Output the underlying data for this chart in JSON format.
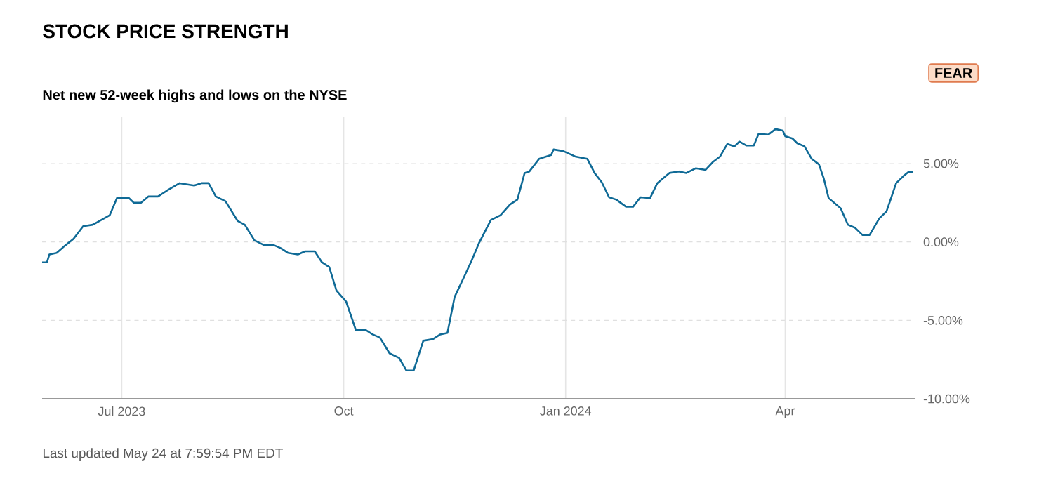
{
  "chart_data": {
    "type": "line",
    "title": "STOCK PRICE STRENGTH",
    "subtitle": "Net new 52-week highs and lows on the NYSE",
    "annotations": [
      "FEAR",
      "Last updated May 24 at 7:59:54 PM EDT"
    ],
    "x": [
      "2023-05-29",
      "2023-05-31",
      "2023-06-01",
      "2023-06-04",
      "2023-06-07",
      "2023-06-11",
      "2023-06-15",
      "2023-06-19",
      "2023-06-26",
      "2023-06-29",
      "2023-07-04",
      "2023-07-06",
      "2023-07-09",
      "2023-07-12",
      "2023-07-16",
      "2023-07-20",
      "2023-07-25",
      "2023-07-31",
      "2023-08-03",
      "2023-08-06",
      "2023-08-09",
      "2023-08-13",
      "2023-08-18",
      "2023-08-21",
      "2023-08-25",
      "2023-08-29",
      "2023-09-02",
      "2023-09-05",
      "2023-09-08",
      "2023-09-12",
      "2023-09-15",
      "2023-09-19",
      "2023-09-22",
      "2023-09-25",
      "2023-09-28",
      "2023-10-02",
      "2023-10-06",
      "2023-10-10",
      "2023-10-13",
      "2023-10-16",
      "2023-10-20",
      "2023-10-24",
      "2023-10-27",
      "2023-10-30",
      "2023-11-03",
      "2023-11-07",
      "2023-11-10",
      "2023-11-13",
      "2023-11-16",
      "2023-11-20",
      "2023-11-23",
      "2023-11-26",
      "2023-12-01",
      "2023-12-05",
      "2023-12-09",
      "2023-12-12",
      "2023-12-15",
      "2023-12-17",
      "2023-12-21",
      "2023-12-26",
      "2023-12-27",
      "2023-12-31",
      "2024-01-05",
      "2024-01-10",
      "2024-01-13",
      "2024-01-16",
      "2024-01-19",
      "2024-01-22",
      "2024-01-26",
      "2024-01-29",
      "2024-02-01",
      "2024-02-05",
      "2024-02-08",
      "2024-02-13",
      "2024-02-17",
      "2024-02-20",
      "2024-02-24",
      "2024-02-28",
      "2024-03-02",
      "2024-03-05",
      "2024-03-08",
      "2024-03-11",
      "2024-03-13",
      "2024-03-16",
      "2024-03-19",
      "2024-03-21",
      "2024-03-25",
      "2024-03-28",
      "2024-03-31",
      "2024-04-01",
      "2024-04-04",
      "2024-04-06",
      "2024-04-09",
      "2024-04-12",
      "2024-04-15",
      "2024-04-17",
      "2024-04-19",
      "2024-04-24",
      "2024-04-27",
      "2024-04-30",
      "2024-05-03",
      "2024-05-06",
      "2024-05-10",
      "2024-05-13",
      "2024-05-17",
      "2024-05-20",
      "2024-05-22",
      "2024-05-24"
    ],
    "series": [
      {
        "color": "#0f6a96",
        "values": [
          -1.3,
          -1.3,
          -0.8,
          -0.7,
          -0.3,
          0.2,
          1.0,
          1.1,
          1.7,
          2.8,
          2.8,
          2.5,
          2.5,
          2.9,
          2.9,
          3.3,
          3.75,
          3.6,
          3.75,
          3.75,
          2.9,
          2.6,
          1.35,
          1.1,
          0.1,
          -0.2,
          -0.2,
          -0.4,
          -0.7,
          -0.8,
          -0.6,
          -0.6,
          -1.3,
          -1.6,
          -3.1,
          -3.8,
          -5.6,
          -5.6,
          -5.9,
          -6.1,
          -7.1,
          -7.4,
          -8.2,
          -8.2,
          -6.3,
          -6.2,
          -5.9,
          -5.8,
          -3.5,
          -2.2,
          -1.2,
          -0.1,
          1.4,
          1.7,
          2.4,
          2.7,
          4.4,
          4.5,
          5.3,
          5.55,
          5.9,
          5.8,
          5.45,
          5.3,
          4.4,
          3.8,
          2.85,
          2.7,
          2.25,
          2.25,
          2.85,
          2.8,
          3.75,
          4.4,
          4.5,
          4.4,
          4.7,
          4.6,
          5.1,
          5.45,
          6.25,
          6.1,
          6.4,
          6.15,
          6.15,
          6.9,
          6.85,
          7.2,
          7.1,
          6.75,
          6.6,
          6.3,
          6.1,
          5.3,
          4.95,
          4.05,
          2.8,
          2.15,
          1.1,
          0.9,
          0.45,
          0.45,
          1.5,
          1.95,
          3.75,
          4.2,
          4.45,
          4.45
        ]
      }
    ],
    "xlim": [
      "2023-05-29",
      "2024-05-25"
    ],
    "xticks": [
      {
        "value": "2023-07-01",
        "label": "Jul 2023"
      },
      {
        "value": "2023-10-01",
        "label": "Oct"
      },
      {
        "value": "2024-01-01",
        "label": "Jan 2024"
      },
      {
        "value": "2024-04-01",
        "label": "Apr"
      }
    ],
    "ylim": [
      -10,
      8
    ],
    "yticks": [
      {
        "value": -10,
        "label": "-10.00%"
      },
      {
        "value": -5,
        "label": "-5.00%"
      },
      {
        "value": 0,
        "label": "0.00%"
      },
      {
        "value": 5,
        "label": "5.00%"
      }
    ],
    "grid": true,
    "marker": "none",
    "line_style": "solid"
  }
}
